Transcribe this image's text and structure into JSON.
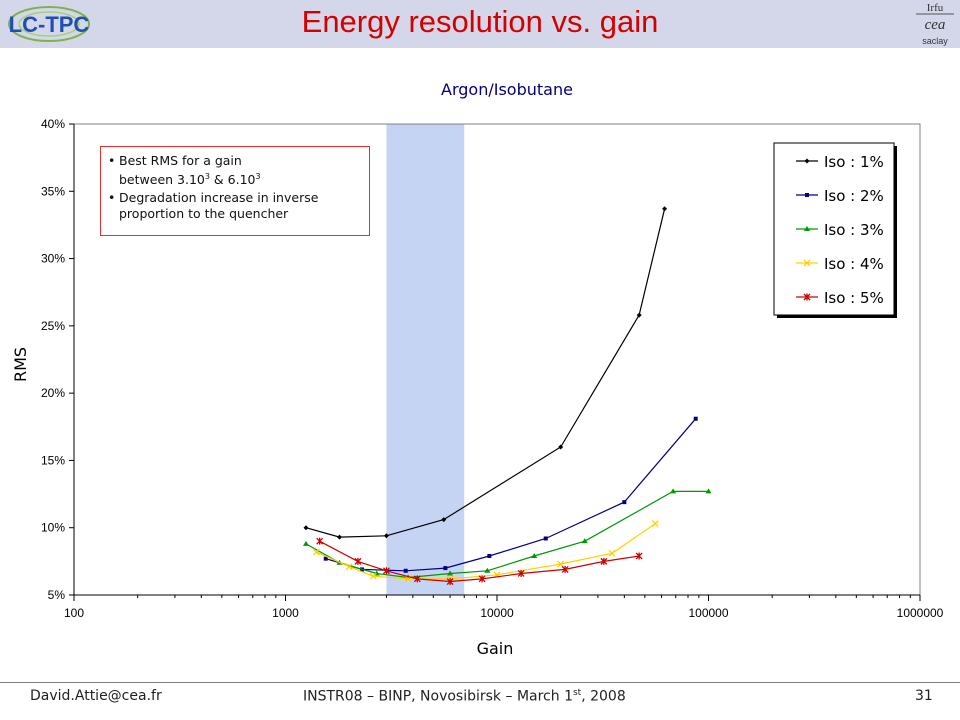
{
  "slide": {
    "title": "Energy resolution vs. gain",
    "footer_email": "David.Attie@cea.fr",
    "footer_conf_main": "INSTR08 – BINP, Novosibirsk – March 1",
    "footer_conf_sup": "st",
    "footer_conf_tail": ", 2008",
    "page": "31"
  },
  "logos": {
    "left_text": "LC-TPC",
    "right_top": "Irfu",
    "right_mid": "cea",
    "right_bottom": "saclay"
  },
  "note": {
    "lines": [
      {
        "main": "Best RMS for a gain",
        "cont": "between 3.10",
        "sup1": "3",
        "mid": " & 6.10",
        "sup2": "3"
      },
      {
        "main": "Degradation increase in inverse",
        "cont": "proportion to the quencher"
      }
    ]
  },
  "chart_data": {
    "type": "line",
    "title": "Argon/Isobutane",
    "xlabel": "Gain",
    "ylabel": "RMS",
    "xscale": "log",
    "xlim": [
      100,
      1000000
    ],
    "ylim": [
      0.05,
      0.4
    ],
    "x_ticks": [
      "100",
      "1000",
      "10000",
      "100000",
      "1000000"
    ],
    "y_ticks": [
      "5%",
      "10%",
      "15%",
      "20%",
      "25%",
      "30%",
      "35%",
      "40%"
    ],
    "highlight_band": [
      3000,
      7000
    ],
    "legend_position": "top-right",
    "series": [
      {
        "name": "Iso : 1%",
        "color": "#000000",
        "marker": "diamond",
        "x": [
          1250,
          1800,
          3000,
          5600,
          20000,
          47000,
          62000
        ],
        "y": [
          0.1,
          0.093,
          0.094,
          0.106,
          0.16,
          0.258,
          0.337
        ]
      },
      {
        "name": "Iso : 2%",
        "color": "#000080",
        "marker": "square",
        "x": [
          1550,
          2300,
          3700,
          5700,
          9200,
          17000,
          40000,
          87000
        ],
        "y": [
          0.077,
          0.069,
          0.068,
          0.07,
          0.079,
          0.092,
          0.119,
          0.181
        ]
      },
      {
        "name": "Iso : 3%",
        "color": "#009900",
        "marker": "triangle",
        "x": [
          1250,
          1800,
          2700,
          3800,
          6000,
          9000,
          15000,
          26000,
          68000,
          100000
        ],
        "y": [
          0.088,
          0.074,
          0.066,
          0.063,
          0.066,
          0.068,
          0.079,
          0.09,
          0.127,
          0.127
        ]
      },
      {
        "name": "Iso : 4%",
        "color": "#ffd000",
        "marker": "x",
        "x": [
          1400,
          2000,
          2600,
          3800,
          6000,
          10000,
          20000,
          35000,
          56000
        ],
        "y": [
          0.082,
          0.071,
          0.064,
          0.062,
          0.062,
          0.065,
          0.073,
          0.081,
          0.103
        ]
      },
      {
        "name": "Iso : 5%",
        "color": "#cc0000",
        "marker": "star",
        "x": [
          1450,
          2200,
          3000,
          4200,
          6000,
          8500,
          13000,
          21000,
          32000,
          47000
        ],
        "y": [
          0.09,
          0.075,
          0.068,
          0.062,
          0.06,
          0.062,
          0.066,
          0.069,
          0.075,
          0.079
        ]
      }
    ]
  }
}
